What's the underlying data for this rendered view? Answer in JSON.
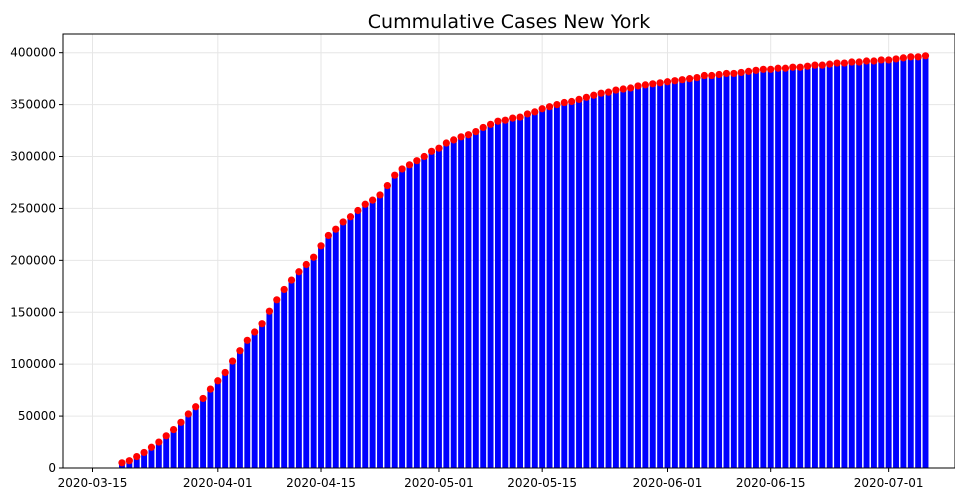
{
  "chart_data": {
    "type": "bar",
    "title": "Cummulative Cases New York",
    "xlabel": "",
    "ylabel": "",
    "x_type": "date",
    "xlim": [
      "2020-03-11",
      "2020-07-10"
    ],
    "ylim": [
      0,
      418000
    ],
    "grid": true,
    "bar_color": "#0000ff",
    "marker_color": "#ff0000",
    "x_ticks": [
      "2020-03-15",
      "2020-04-01",
      "2020-04-15",
      "2020-05-01",
      "2020-05-15",
      "2020-06-01",
      "2020-06-15",
      "2020-07-01"
    ],
    "y_ticks": [
      0,
      50000,
      100000,
      150000,
      200000,
      250000,
      300000,
      350000,
      400000
    ],
    "series": [
      {
        "x": [
          "2020-03-19",
          "2020-03-20",
          "2020-03-21",
          "2020-03-22",
          "2020-03-23",
          "2020-03-24",
          "2020-03-25",
          "2020-03-26",
          "2020-03-27",
          "2020-03-28",
          "2020-03-29",
          "2020-03-30",
          "2020-03-31",
          "2020-04-01",
          "2020-04-02",
          "2020-04-03",
          "2020-04-04",
          "2020-04-05",
          "2020-04-06",
          "2020-04-07",
          "2020-04-08",
          "2020-04-09",
          "2020-04-10",
          "2020-04-11",
          "2020-04-12",
          "2020-04-13",
          "2020-04-14",
          "2020-04-15",
          "2020-04-16",
          "2020-04-17",
          "2020-04-18",
          "2020-04-19",
          "2020-04-20",
          "2020-04-21",
          "2020-04-22",
          "2020-04-23",
          "2020-04-24",
          "2020-04-25",
          "2020-04-26",
          "2020-04-27",
          "2020-04-28",
          "2020-04-29",
          "2020-04-30",
          "2020-05-01",
          "2020-05-02",
          "2020-05-03",
          "2020-05-04",
          "2020-05-05",
          "2020-05-06",
          "2020-05-07",
          "2020-05-08",
          "2020-05-09",
          "2020-05-10",
          "2020-05-11",
          "2020-05-12",
          "2020-05-13",
          "2020-05-14",
          "2020-05-15",
          "2020-05-16",
          "2020-05-17",
          "2020-05-18",
          "2020-05-19",
          "2020-05-20",
          "2020-05-21",
          "2020-05-22",
          "2020-05-23",
          "2020-05-24",
          "2020-05-25",
          "2020-05-26",
          "2020-05-27",
          "2020-05-28",
          "2020-05-29",
          "2020-05-30",
          "2020-05-31",
          "2020-06-01",
          "2020-06-02",
          "2020-06-03",
          "2020-06-04",
          "2020-06-05",
          "2020-06-06",
          "2020-06-07",
          "2020-06-08",
          "2020-06-09",
          "2020-06-10",
          "2020-06-11",
          "2020-06-12",
          "2020-06-13",
          "2020-06-14",
          "2020-06-15",
          "2020-06-16",
          "2020-06-17",
          "2020-06-18",
          "2020-06-19",
          "2020-06-20",
          "2020-06-21",
          "2020-06-22",
          "2020-06-23",
          "2020-06-24",
          "2020-06-25",
          "2020-06-26",
          "2020-06-27",
          "2020-06-28",
          "2020-06-29",
          "2020-06-30",
          "2020-07-01",
          "2020-07-02",
          "2020-07-03",
          "2020-07-04",
          "2020-07-05",
          "2020-07-06"
        ],
        "y": [
          5000,
          7000,
          11000,
          15000,
          20000,
          25000,
          31000,
          37000,
          44000,
          52000,
          59000,
          67000,
          76000,
          84000,
          92000,
          103000,
          113000,
          123000,
          131000,
          139000,
          151000,
          162000,
          172000,
          181000,
          189000,
          196000,
          203000,
          214000,
          224000,
          230000,
          237000,
          242000,
          248000,
          254000,
          258000,
          263000,
          272000,
          282000,
          288000,
          292000,
          296000,
          300000,
          305000,
          308000,
          313000,
          316000,
          319000,
          321000,
          324000,
          328000,
          331000,
          334000,
          335000,
          337000,
          338000,
          341000,
          343000,
          346000,
          348000,
          350000,
          352000,
          353000,
          355000,
          357000,
          359000,
          361000,
          362000,
          364000,
          365000,
          366000,
          368000,
          369000,
          370000,
          371000,
          372000,
          373000,
          374000,
          375000,
          376000,
          378000,
          378000,
          379000,
          380000,
          380000,
          381000,
          382000,
          383000,
          384000,
          384000,
          385000,
          385000,
          386000,
          386000,
          387000,
          388000,
          388000,
          389000,
          390000,
          390000,
          391000,
          391000,
          392000,
          392000,
          393000,
          393000,
          394000,
          395000,
          396000,
          396000,
          397000
        ]
      }
    ]
  }
}
